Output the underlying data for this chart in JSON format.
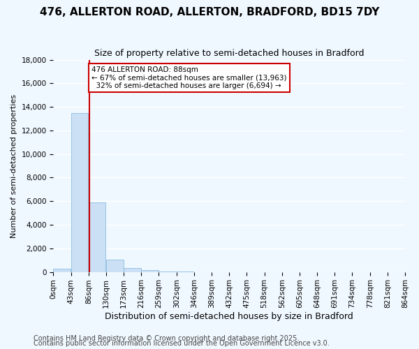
{
  "title": "476, ALLERTON ROAD, ALLERTON, BRADFORD, BD15 7DY",
  "subtitle": "Size of property relative to semi-detached houses in Bradford",
  "xlabel": "Distribution of semi-detached houses by size in Bradford",
  "ylabel": "Number of semi-detached properties",
  "footer1": "Contains HM Land Registry data © Crown copyright and database right 2025.",
  "footer2": "Contains public sector information licensed under the Open Government Licence v3.0.",
  "bin_labels": [
    "0sqm",
    "43sqm",
    "86sqm",
    "130sqm",
    "173sqm",
    "216sqm",
    "259sqm",
    "302sqm",
    "346sqm",
    "389sqm",
    "432sqm",
    "475sqm",
    "518sqm",
    "562sqm",
    "605sqm",
    "648sqm",
    "691sqm",
    "734sqm",
    "778sqm",
    "821sqm",
    "864sqm"
  ],
  "bar_values": [
    300,
    13500,
    5900,
    1050,
    350,
    150,
    50,
    10,
    5,
    3,
    2,
    1,
    0,
    0,
    0,
    0,
    0,
    0,
    0,
    0
  ],
  "bar_color": "#cce0f5",
  "bar_edge_color": "#7ab3d9",
  "property_size": 88,
  "property_line_color": "#cc0000",
  "annotation_text": "476 ALLERTON ROAD: 88sqm\n← 67% of semi-detached houses are smaller (13,963)\n  32% of semi-detached houses are larger (6,694) →",
  "annotation_box_color": "#cc0000",
  "annotation_bg_color": "#ffffff",
  "ylim": [
    0,
    18000
  ],
  "yticks": [
    0,
    2000,
    4000,
    6000,
    8000,
    10000,
    12000,
    14000,
    16000,
    18000
  ],
  "bg_color": "#f0f8ff",
  "grid_color": "#ffffff",
  "title_fontsize": 11,
  "subtitle_fontsize": 9,
  "xlabel_fontsize": 9,
  "ylabel_fontsize": 8,
  "tick_fontsize": 7.5,
  "footer_fontsize": 7
}
